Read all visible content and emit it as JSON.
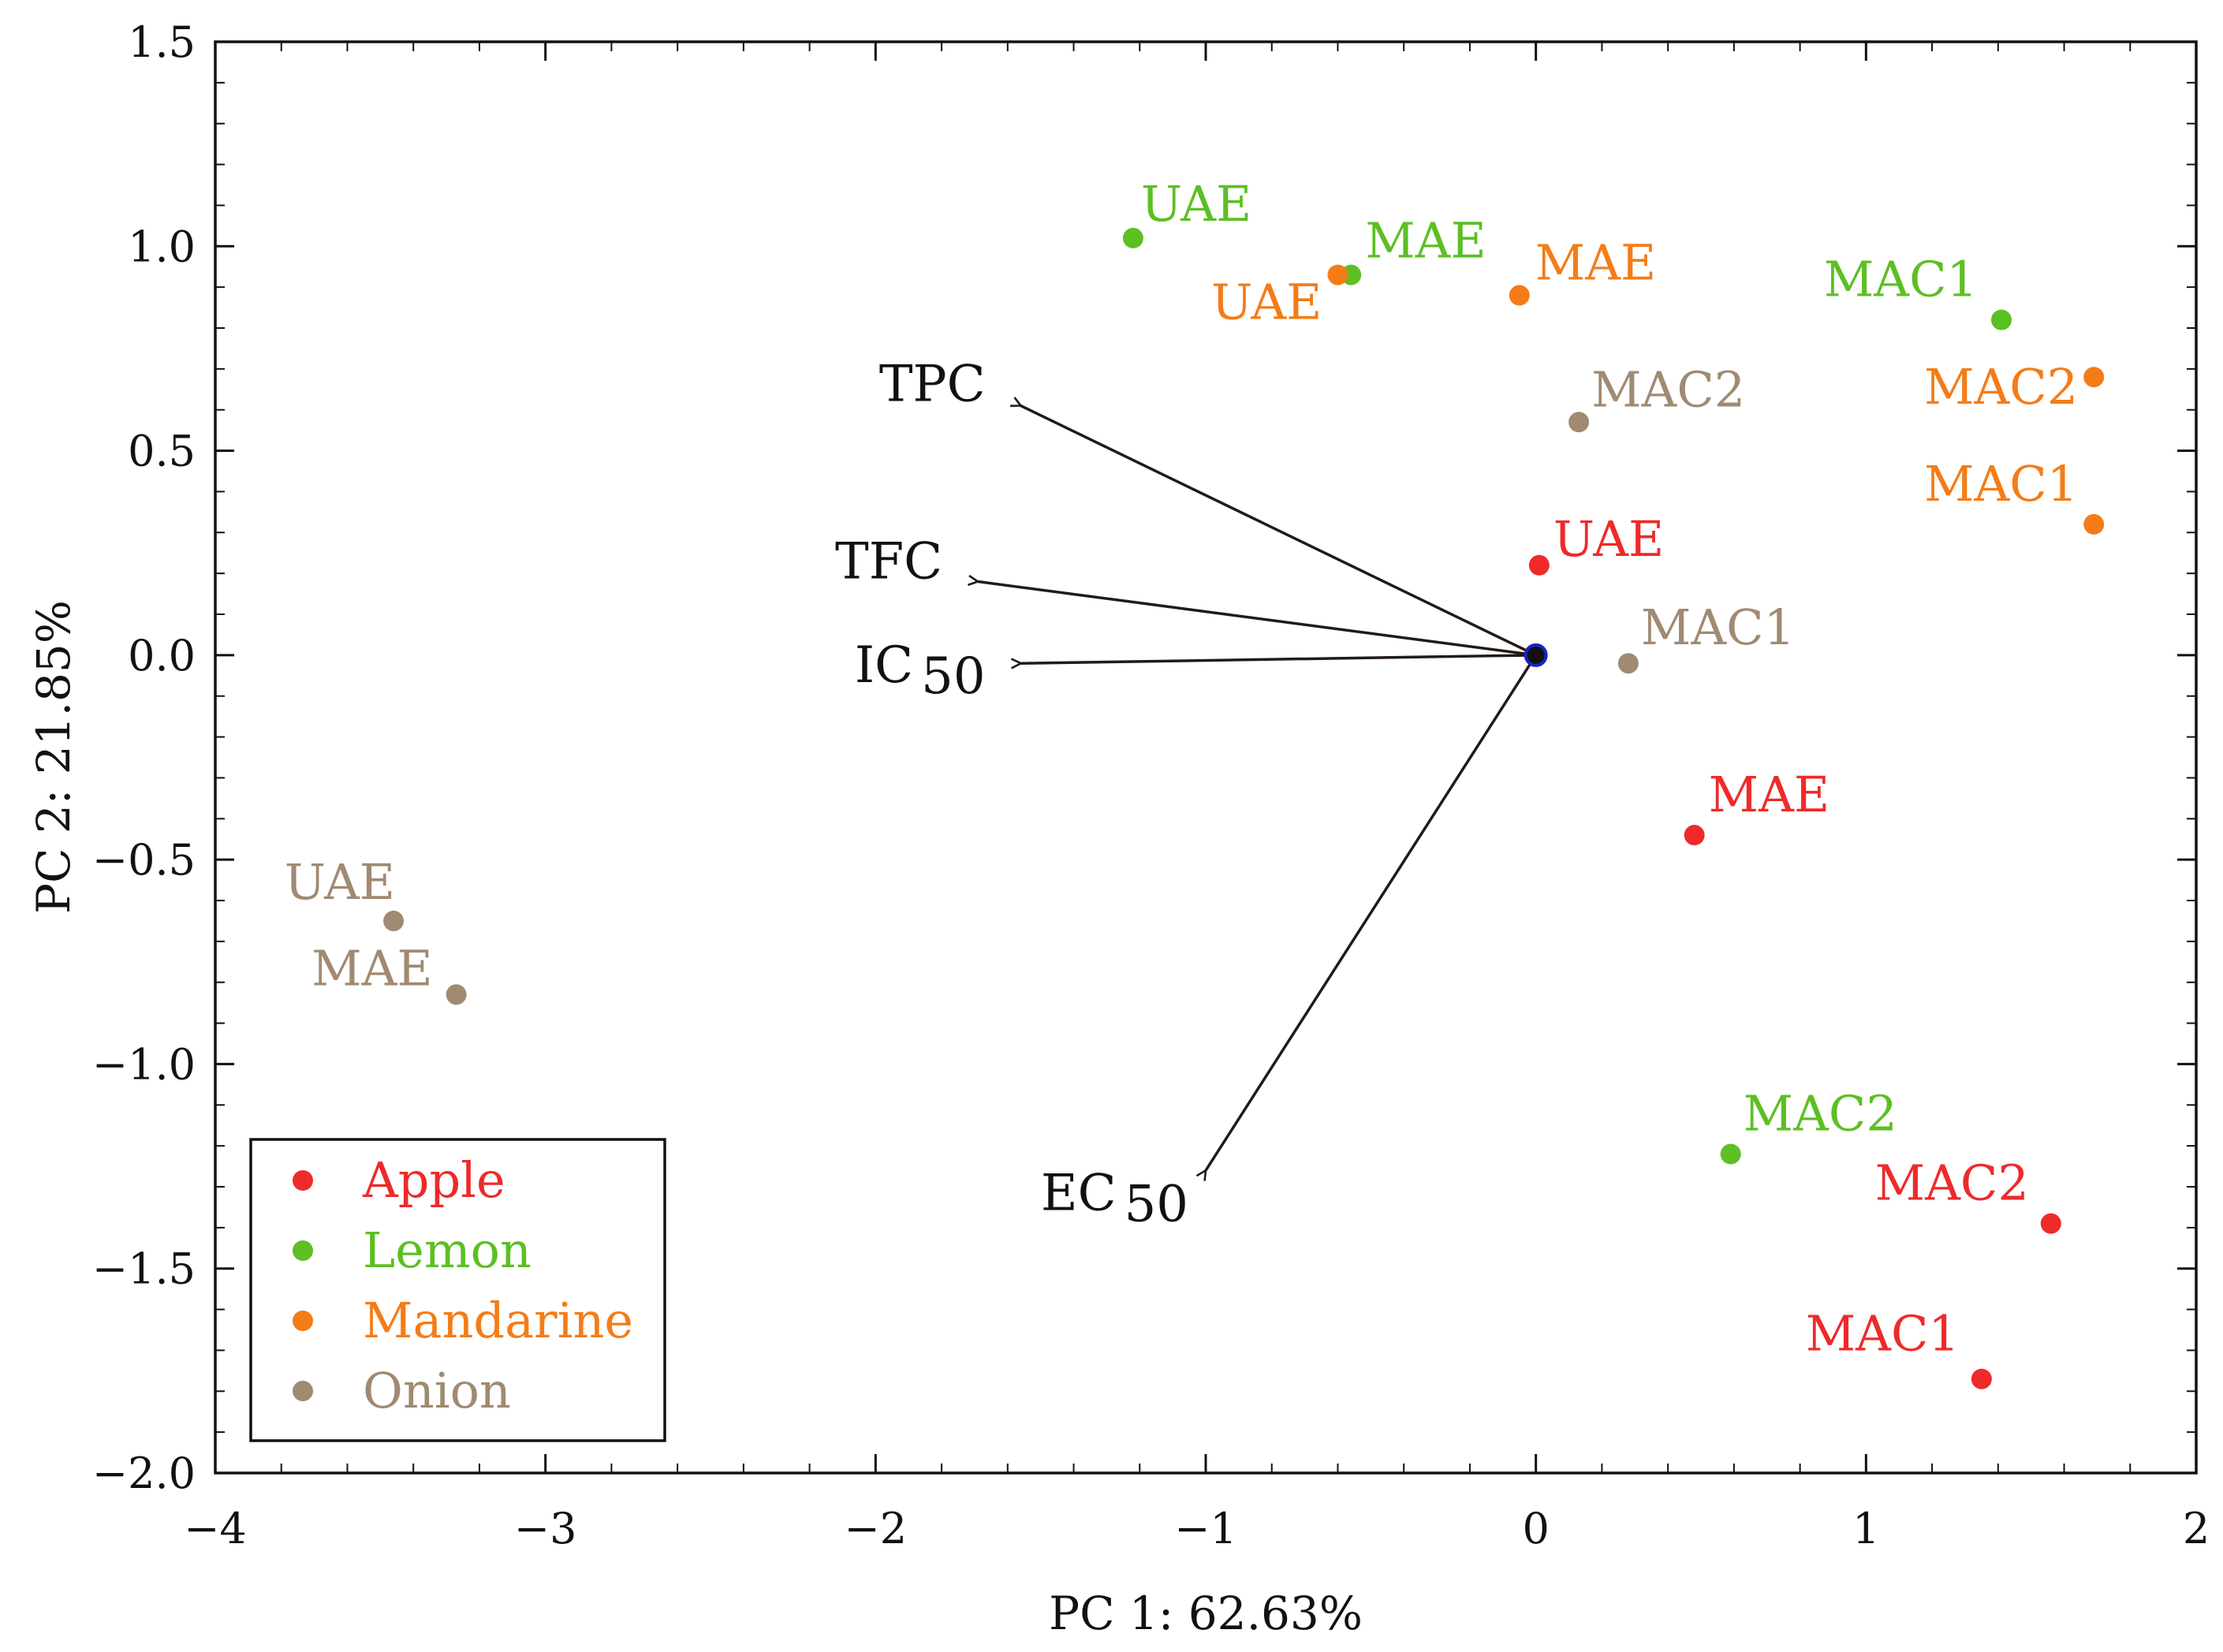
{
  "chart_data": {
    "type": "scatter",
    "subtype": "pca-biplot",
    "xlabel": "PC 1: 62.63%",
    "ylabel": "PC 2: 21.85%",
    "xlim": [
      -4,
      2
    ],
    "ylim": [
      -2.0,
      1.5
    ],
    "x_ticks": [
      -4,
      -3,
      -2,
      -1,
      0,
      1,
      2
    ],
    "x_tick_labels": [
      "−4",
      "−3",
      "−2",
      "−1",
      "0",
      "1",
      "2"
    ],
    "y_ticks": [
      1.5,
      1.0,
      0.5,
      0.0,
      -0.5,
      -1.0,
      -1.5,
      -2.0
    ],
    "y_tick_labels": [
      "1.5",
      "1.0",
      "0.5",
      "0.0",
      "−0.5",
      "−1.0",
      "−1.5",
      "−2.0"
    ],
    "grid": false,
    "legend_position": "bottom-left",
    "series": [
      {
        "name": "Apple",
        "color": "#ee2a2a",
        "points": [
          {
            "label": "UAE",
            "x": 0.01,
            "y": 0.22
          },
          {
            "label": "MAE",
            "x": 0.48,
            "y": -0.44
          },
          {
            "label": "MAC2",
            "x": 1.56,
            "y": -1.39
          },
          {
            "label": "MAC1",
            "x": 1.35,
            "y": -1.77
          }
        ]
      },
      {
        "name": "Lemon",
        "color": "#5cbf24",
        "points": [
          {
            "label": "UAE",
            "x": -1.22,
            "y": 1.02
          },
          {
            "label": "MAE",
            "x": -0.56,
            "y": 0.93
          },
          {
            "label": "MAC1",
            "x": 1.41,
            "y": 0.82
          },
          {
            "label": "MAC2",
            "x": 0.59,
            "y": -1.22
          }
        ]
      },
      {
        "name": "Mandarine",
        "color": "#f47c17",
        "points": [
          {
            "label": "UAE",
            "x": -0.6,
            "y": 0.93
          },
          {
            "label": "MAE",
            "x": -0.05,
            "y": 0.88
          },
          {
            "label": "MAC2",
            "x": 1.69,
            "y": 0.68
          },
          {
            "label": "MAC1",
            "x": 1.69,
            "y": 0.32
          }
        ]
      },
      {
        "name": "Onion",
        "color": "#a08a72",
        "points": [
          {
            "label": "MAC2",
            "x": 0.13,
            "y": 0.57
          },
          {
            "label": "MAC1",
            "x": 0.28,
            "y": -0.02
          },
          {
            "label": "UAE",
            "x": -3.46,
            "y": -0.65
          },
          {
            "label": "MAE",
            "x": -3.27,
            "y": -0.83
          }
        ]
      }
    ],
    "loadings": [
      {
        "name": "TPC",
        "main": "TPC",
        "sub": "",
        "x": -1.56,
        "y": 0.61
      },
      {
        "name": "TFC",
        "main": "TFC",
        "sub": "",
        "x": -1.69,
        "y": 0.18
      },
      {
        "name": "IC50",
        "main": "IC",
        "sub": "50",
        "x": -1.56,
        "y": -0.02
      },
      {
        "name": "EC50",
        "main": "EC",
        "sub": "50",
        "x": -1.0,
        "y": -1.26
      }
    ],
    "origin_marker_color": "#1a22c8",
    "arrow_color": "#231a14"
  }
}
